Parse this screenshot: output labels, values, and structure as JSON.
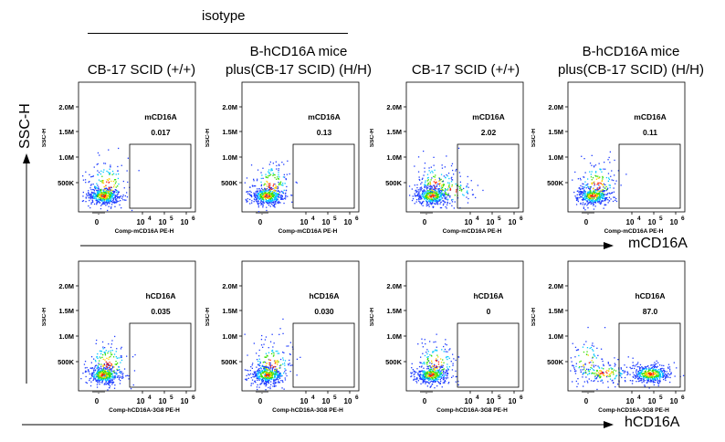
{
  "header": {
    "isotype_label": "isotype",
    "columns": [
      {
        "line1": "",
        "line2": "CB-17 SCID (+/+)"
      },
      {
        "line1": "B-hCD16A mice",
        "line2": "plus(CB-17 SCID)  (H/H)"
      },
      {
        "line1": "",
        "line2": "CB-17 SCID (+/+)"
      },
      {
        "line1": "B-hCD16A mice",
        "line2": "plus(CB-17 SCID)  (H/H)"
      }
    ]
  },
  "axes": {
    "y_label": "SSC-H",
    "row1_x_label": "mCD16A",
    "row2_x_label": "hCD16A"
  },
  "colors": {
    "density_low": "#1f3cff",
    "density_mid": "#00c8ff",
    "density_midhigh": "#38e000",
    "density_high": "#ffd000",
    "density_peak": "#ff2000"
  },
  "chart_data": [
    {
      "type": "scatter",
      "row": 1,
      "col": 1,
      "gate_name": "mCD16A",
      "gate_pct": "0.017",
      "xlabel": "Comp-mCD16A PE-H",
      "ylabel": "SSC-H",
      "y_ticks": [
        "2.0M",
        "1.5M",
        "1.0M",
        "500K"
      ],
      "x_ticks": [
        "0",
        "10",
        "10",
        "10"
      ],
      "x_tick_exps": [
        "",
        "4",
        "5",
        "6"
      ]
    },
    {
      "type": "scatter",
      "row": 1,
      "col": 2,
      "gate_name": "mCD16A",
      "gate_pct": "0.13",
      "xlabel": "Comp-mCD16A PE-H",
      "ylabel": "SSC-H",
      "y_ticks": [
        "2.0M",
        "1.5M",
        "1.0M",
        "500K"
      ],
      "x_ticks": [
        "0",
        "10",
        "10",
        "10"
      ],
      "x_tick_exps": [
        "",
        "4",
        "5",
        "6"
      ]
    },
    {
      "type": "scatter",
      "row": 1,
      "col": 3,
      "gate_name": "mCD16A",
      "gate_pct": "2.02",
      "xlabel": "Comp-mCD16A PE-H",
      "ylabel": "SSC-H",
      "y_ticks": [
        "2.0M",
        "1.5M",
        "1.0M",
        "500K"
      ],
      "x_ticks": [
        "0",
        "10",
        "10",
        "10"
      ],
      "x_tick_exps": [
        "",
        "4",
        "5",
        "6"
      ]
    },
    {
      "type": "scatter",
      "row": 1,
      "col": 4,
      "gate_name": "mCD16A",
      "gate_pct": "0.11",
      "xlabel": "Comp-mCD16A PE-H",
      "ylabel": "SSC-H",
      "y_ticks": [
        "2.0M",
        "1.5M",
        "1.0M",
        "500K"
      ],
      "x_ticks": [
        "0",
        "10",
        "10",
        "10"
      ],
      "x_tick_exps": [
        "",
        "4",
        "5",
        "6"
      ]
    },
    {
      "type": "scatter",
      "row": 2,
      "col": 1,
      "gate_name": "hCD16A",
      "gate_pct": "0.035",
      "xlabel": "Comp-hCD16A-3G8 PE-H",
      "ylabel": "SSC-H",
      "y_ticks": [
        "2.0M",
        "1.5M",
        "1.0M",
        "500K"
      ],
      "x_ticks": [
        "0",
        "10",
        "10",
        "10"
      ],
      "x_tick_exps": [
        "",
        "4",
        "5",
        "6"
      ]
    },
    {
      "type": "scatter",
      "row": 2,
      "col": 2,
      "gate_name": "hCD16A",
      "gate_pct": "0.030",
      "xlabel": "Comp-hCD16A-3G8 PE-H",
      "ylabel": "SSC-H",
      "y_ticks": [
        "2.0M",
        "1.5M",
        "1.0M",
        "500K"
      ],
      "x_ticks": [
        "0",
        "10",
        "10",
        "10"
      ],
      "x_tick_exps": [
        "",
        "4",
        "5",
        "6"
      ]
    },
    {
      "type": "scatter",
      "row": 2,
      "col": 3,
      "gate_name": "hCD16A",
      "gate_pct": "0",
      "xlabel": "Comp-hCD16A-3G8 PE-H",
      "ylabel": "SSC-H",
      "y_ticks": [
        "2.0M",
        "1.5M",
        "1.0M",
        "500K"
      ],
      "x_ticks": [
        "0",
        "10",
        "10",
        "10"
      ],
      "x_tick_exps": [
        "",
        "4",
        "5",
        "6"
      ]
    },
    {
      "type": "scatter",
      "row": 2,
      "col": 4,
      "gate_name": "hCD16A",
      "gate_pct": "87.0",
      "xlabel": "Comp-hCD16A-3G8 PE-H",
      "ylabel": "SSC-H",
      "y_ticks": [
        "2.0M",
        "1.5M",
        "1.0M",
        "500K"
      ],
      "x_ticks": [
        "0",
        "10",
        "10",
        "10"
      ],
      "x_tick_exps": [
        "",
        "4",
        "5",
        "6"
      ]
    }
  ]
}
